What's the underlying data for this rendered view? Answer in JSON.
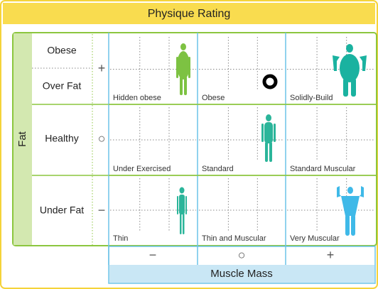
{
  "title": "Physique Rating",
  "fat_axis": {
    "label": "Fat",
    "row_labels": [
      "Obese",
      "Over Fat",
      "Healthy",
      "Under Fat"
    ],
    "signs": [
      "+",
      "○",
      "−"
    ]
  },
  "muscle_axis": {
    "label": "Muscle Mass",
    "signs": [
      "−",
      "○",
      "+"
    ]
  },
  "cells": [
    [
      "Hidden obese",
      "Obese",
      "Solidly-Build"
    ],
    [
      "Under Exercised",
      "Standard",
      "Standard Muscular"
    ],
    [
      "Thin",
      "Thin and Muscular",
      "Very Muscular"
    ]
  ]
}
